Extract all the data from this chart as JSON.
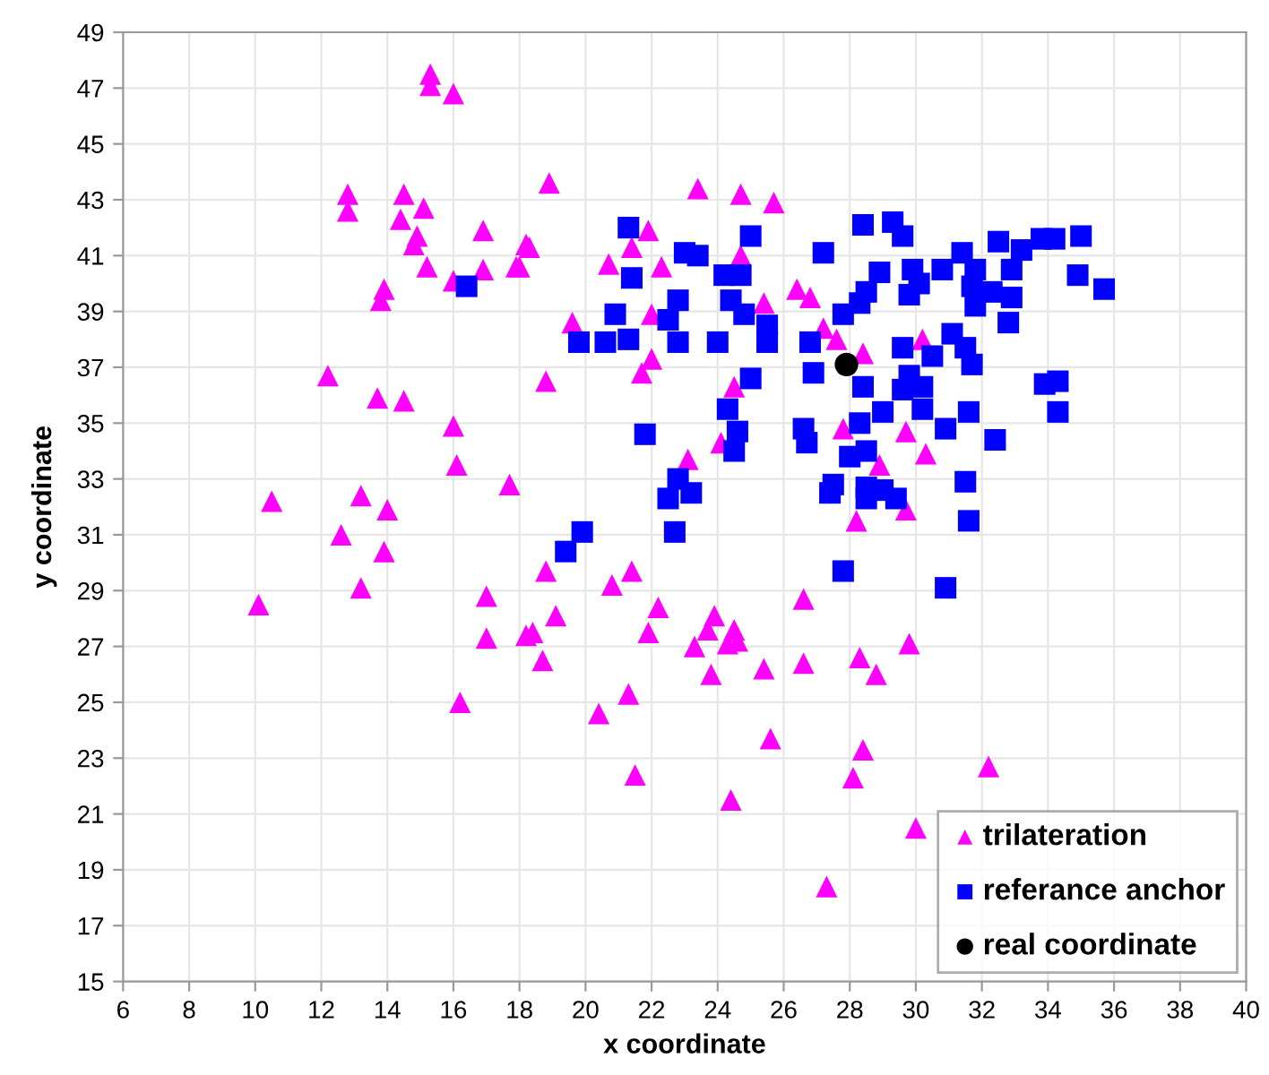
{
  "chart_data": {
    "type": "scatter",
    "xlabel": "x coordinate",
    "ylabel": "y coordinate",
    "xlim": [
      6,
      40
    ],
    "ylim": [
      15,
      49
    ],
    "xticks": [
      6,
      8,
      10,
      12,
      14,
      16,
      18,
      20,
      22,
      24,
      26,
      28,
      30,
      32,
      34,
      36,
      38,
      40
    ],
    "yticks": [
      15,
      17,
      19,
      21,
      23,
      25,
      27,
      29,
      31,
      33,
      35,
      37,
      39,
      41,
      43,
      45,
      47,
      49
    ],
    "grid": true,
    "legend": "bottom right",
    "series": [
      {
        "name": "trilateration",
        "color": "#ff00ff",
        "marker": "triangle",
        "x": [
          15.3,
          15.3,
          16.0,
          12.8,
          12.8,
          14.5,
          14.4,
          15.1,
          14.9,
          14.8,
          15.2,
          16.9,
          18.2,
          16.9,
          17.9,
          16.0,
          13.9,
          13.8,
          12.2,
          13.7,
          14.5,
          16.0,
          16.1,
          17.7,
          10.5,
          13.2,
          14.0,
          12.6,
          13.9,
          13.2,
          10.1,
          17.0,
          17.0,
          16.2,
          18.2,
          18.8,
          20.8,
          21.4,
          19.1,
          18.4,
          18.7,
          22.2,
          21.9,
          23.9,
          23.3,
          23.7,
          24.5,
          24.3,
          24.6,
          23.8,
          25.4,
          26.6,
          26.6,
          28.3,
          28.8,
          29.8,
          21.3,
          20.4,
          25.6,
          28.4,
          28.1,
          21.5,
          24.4,
          27.3,
          30.0,
          28.2,
          29.7,
          32.2,
          18.9,
          23.4,
          24.7,
          25.7,
          21.9,
          21.4,
          18.3,
          18.0,
          20.7,
          22.3,
          24.7,
          26.4,
          26.8,
          25.4,
          19.6,
          22.0,
          27.2,
          27.6,
          28.4,
          22.0,
          21.7,
          18.8,
          24.5,
          24.1,
          23.1,
          27.8,
          29.7,
          30.3,
          28.9,
          30.2
        ],
        "values": [
          47.5,
          47.1,
          46.8,
          43.2,
          42.6,
          43.2,
          42.3,
          42.7,
          41.7,
          41.4,
          40.6,
          41.9,
          41.4,
          40.5,
          40.6,
          40.1,
          39.8,
          39.4,
          36.7,
          35.9,
          35.8,
          34.9,
          33.5,
          32.8,
          32.2,
          32.4,
          31.9,
          31.0,
          30.4,
          29.1,
          28.5,
          28.8,
          27.3,
          25.0,
          27.4,
          29.7,
          29.2,
          29.7,
          28.1,
          27.5,
          26.5,
          28.4,
          27.5,
          28.1,
          27.0,
          27.6,
          27.6,
          27.1,
          27.2,
          26.0,
          26.2,
          28.7,
          26.4,
          26.6,
          26.0,
          27.1,
          25.3,
          24.6,
          23.7,
          23.3,
          22.3,
          22.4,
          21.5,
          18.4,
          20.5,
          31.5,
          31.9,
          22.7,
          43.6,
          43.4,
          43.2,
          42.9,
          41.9,
          41.3,
          41.3,
          40.6,
          40.7,
          40.6,
          41.0,
          39.8,
          39.5,
          39.3,
          38.6,
          38.9,
          38.4,
          38.0,
          37.5,
          37.3,
          36.8,
          36.5,
          36.3,
          34.3,
          33.7,
          34.8,
          34.7,
          33.9,
          33.5,
          38.0
        ]
      },
      {
        "name": "referance anchor",
        "color": "#0000ff",
        "marker": "square",
        "x": [
          16.4,
          19.9,
          19.4,
          22.7,
          27.8,
          21.3,
          25.0,
          23.0,
          23.4,
          27.2,
          28.4,
          29.3,
          29.6,
          21.4,
          24.2,
          24.7,
          28.9,
          29.9,
          29.8,
          28.5,
          28.3,
          27.8,
          20.9,
          22.8,
          22.5,
          24.4,
          24.8,
          25.5,
          19.8,
          20.6,
          21.3,
          22.8,
          24.0,
          25.5,
          26.8,
          26.9,
          25.0,
          28.4,
          29.6,
          29.8,
          29.6,
          30.2,
          29.0,
          24.3,
          24.6,
          24.5,
          26.6,
          26.7,
          21.8,
          28.3,
          28.0,
          28.5,
          27.5,
          27.4,
          28.5,
          29.0,
          29.4,
          28.5,
          22.8,
          23.2,
          22.5,
          32.5,
          33.2,
          33.8,
          34.2,
          35.0,
          34.9,
          35.7,
          31.4,
          30.8,
          31.8,
          32.9,
          31.7,
          32.3,
          32.9,
          31.8,
          32.8,
          30.1,
          31.1,
          30.5,
          31.5,
          31.7,
          30.2,
          33.9,
          34.3,
          34.3,
          31.6,
          30.9,
          32.4,
          31.5,
          31.6,
          30.9
        ],
        "values": [
          39.9,
          31.1,
          30.4,
          31.1,
          29.7,
          42.0,
          41.7,
          41.1,
          41.0,
          41.1,
          42.1,
          42.2,
          41.7,
          40.2,
          40.3,
          40.3,
          40.4,
          40.5,
          39.6,
          39.7,
          39.3,
          38.9,
          38.9,
          39.4,
          38.7,
          39.4,
          38.9,
          38.5,
          37.9,
          37.9,
          38.0,
          37.9,
          37.9,
          37.9,
          37.9,
          36.8,
          36.6,
          36.3,
          37.7,
          36.7,
          36.2,
          36.3,
          35.4,
          35.5,
          34.7,
          34.0,
          34.8,
          34.3,
          34.6,
          35.0,
          33.8,
          34.0,
          32.8,
          32.5,
          32.7,
          32.6,
          32.3,
          32.3,
          33.0,
          32.5,
          32.3,
          41.5,
          41.2,
          41.6,
          41.6,
          41.7,
          40.3,
          39.8,
          41.1,
          40.5,
          40.5,
          40.5,
          39.9,
          39.7,
          39.5,
          39.2,
          38.6,
          40.0,
          38.2,
          37.4,
          37.7,
          37.1,
          35.5,
          36.4,
          36.5,
          35.4,
          35.4,
          34.8,
          34.4,
          32.9,
          31.5,
          29.1
        ]
      },
      {
        "name": "real coordinate",
        "color": "#000000",
        "marker": "circle",
        "x": [
          27.9
        ],
        "values": [
          37.1
        ]
      }
    ]
  }
}
